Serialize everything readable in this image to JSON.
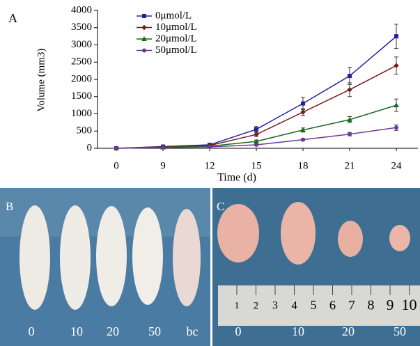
{
  "chart_data": {
    "type": "line",
    "panel_label": "A",
    "x_label": "Time (d)",
    "y_label": "Volume (mm3)",
    "categories": [
      "0",
      "9",
      "12",
      "15",
      "18",
      "21",
      "24"
    ],
    "ylim": [
      0,
      4000
    ],
    "yticks": [
      0,
      500,
      1000,
      1500,
      2000,
      2500,
      3000,
      3500,
      4000
    ],
    "series": [
      {
        "name": "0μmol/L",
        "color": "#22229a",
        "marker": "square",
        "values": [
          0,
          50,
          100,
          550,
          1300,
          2100,
          3250
        ],
        "errors": [
          0,
          20,
          30,
          80,
          180,
          250,
          350
        ]
      },
      {
        "name": "10μmol/L",
        "color": "#7a1c1c",
        "marker": "diamond",
        "values": [
          0,
          40,
          80,
          400,
          1050,
          1700,
          2400
        ],
        "errors": [
          0,
          15,
          25,
          60,
          100,
          200,
          250
        ]
      },
      {
        "name": "20μmol/L",
        "color": "#1c6a1c",
        "marker": "triangle",
        "values": [
          0,
          30,
          60,
          200,
          530,
          830,
          1250
        ],
        "errors": [
          0,
          10,
          20,
          40,
          60,
          90,
          180
        ]
      },
      {
        "name": "50μmol/L",
        "color": "#6a3a9a",
        "marker": "circle",
        "values": [
          0,
          20,
          40,
          100,
          250,
          410,
          600
        ],
        "errors": [
          0,
          5,
          10,
          20,
          30,
          50,
          80
        ]
      }
    ]
  },
  "panel_b": {
    "label": "B",
    "mouse_labels": [
      "0",
      "10",
      "20",
      "50",
      "bc"
    ]
  },
  "panel_c": {
    "label": "C",
    "tumor_labels": [
      "0",
      "10",
      "20",
      "50"
    ],
    "ruler_numbers": [
      "1",
      "2",
      "3",
      "4",
      "5",
      "6",
      "7",
      "8",
      "9",
      "10"
    ]
  }
}
